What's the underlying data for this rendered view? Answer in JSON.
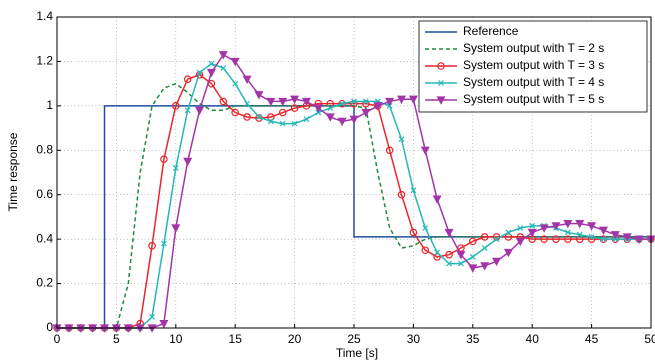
{
  "chart_data": {
    "type": "line",
    "xlabel": "Time [s]",
    "ylabel": "Time response",
    "xlim": [
      0,
      50
    ],
    "ylim": [
      0,
      1.4
    ],
    "xticks": [
      0,
      5,
      10,
      15,
      20,
      25,
      30,
      35,
      40,
      45,
      50
    ],
    "yticks": [
      0,
      0.2,
      0.4,
      0.6,
      0.8,
      1,
      1.2,
      1.4
    ],
    "grid": true,
    "legend": "upper right",
    "x": [
      0,
      1,
      2,
      3,
      4,
      5,
      6,
      7,
      8,
      9,
      10,
      11,
      12,
      13,
      14,
      15,
      16,
      17,
      18,
      19,
      20,
      21,
      22,
      23,
      24,
      25,
      26,
      27,
      28,
      29,
      30,
      31,
      32,
      33,
      34,
      35,
      36,
      37,
      38,
      39,
      40,
      41,
      42,
      43,
      44,
      45,
      46,
      47,
      48,
      49,
      50
    ],
    "series": [
      {
        "name": "Reference",
        "color": "#1f4e9c",
        "x": [
          0,
          4,
          4,
          25,
          25,
          50
        ],
        "values": [
          0,
          0,
          1,
          1,
          0.41,
          0.41
        ]
      },
      {
        "name": "System output with T = 2 s",
        "color": "#1e8a3c",
        "dashed": true,
        "values": [
          0,
          0,
          0,
          0,
          0,
          0,
          0.2,
          0.7,
          1.0,
          1.08,
          1.1,
          1.06,
          1.01,
          0.98,
          0.98,
          1.0,
          1.0,
          1.0,
          1.0,
          1.0,
          1.0,
          1.0,
          1.0,
          1.0,
          1.0,
          1.0,
          0.99,
          0.7,
          0.45,
          0.36,
          0.37,
          0.4,
          0.41,
          0.41,
          0.41,
          0.41,
          0.41,
          0.41,
          0.41,
          0.41,
          0.41,
          0.41,
          0.41,
          0.41,
          0.41,
          0.41,
          0.41,
          0.41,
          0.41,
          0.41,
          0.41
        ]
      },
      {
        "name": "System output with T = 3 s",
        "color": "#e8262b",
        "marker": "circle",
        "values": [
          0,
          0,
          0,
          0,
          0,
          0,
          0,
          0.02,
          0.37,
          0.76,
          1.0,
          1.12,
          1.14,
          1.1,
          1.02,
          0.97,
          0.95,
          0.945,
          0.95,
          0.97,
          0.99,
          1.0,
          1.01,
          1.01,
          1.01,
          1.01,
          1.01,
          1.0,
          0.8,
          0.6,
          0.43,
          0.35,
          0.32,
          0.33,
          0.36,
          0.39,
          0.41,
          0.41,
          0.41,
          0.41,
          0.4,
          0.4,
          0.4,
          0.4,
          0.4,
          0.4,
          0.4,
          0.4,
          0.4,
          0.4,
          0.4
        ]
      },
      {
        "name": "System output with T = 4 s",
        "color": "#25b8b8",
        "marker": "x",
        "values": [
          0,
          0,
          0,
          0,
          0,
          0,
          0,
          0,
          0.05,
          0.38,
          0.72,
          0.98,
          1.15,
          1.19,
          1.17,
          1.1,
          1.01,
          0.95,
          0.93,
          0.92,
          0.92,
          0.94,
          0.97,
          0.99,
          1.01,
          1.02,
          1.02,
          1.02,
          1.0,
          0.85,
          0.62,
          0.45,
          0.34,
          0.29,
          0.29,
          0.32,
          0.36,
          0.4,
          0.43,
          0.45,
          0.46,
          0.46,
          0.45,
          0.43,
          0.42,
          0.41,
          0.4,
          0.4,
          0.4,
          0.4,
          0.4
        ]
      },
      {
        "name": "System output with T = 5 s",
        "color": "#a235a8",
        "marker": "triangle",
        "values": [
          0,
          0,
          0,
          0,
          0,
          0,
          0,
          0,
          0,
          0.02,
          0.45,
          0.75,
          0.98,
          1.15,
          1.23,
          1.2,
          1.12,
          1.05,
          1.02,
          1.02,
          1.03,
          1.02,
          0.99,
          0.95,
          0.93,
          0.94,
          0.97,
          1.0,
          1.02,
          1.03,
          1.03,
          0.8,
          0.58,
          0.43,
          0.33,
          0.27,
          0.28,
          0.3,
          0.34,
          0.39,
          0.43,
          0.45,
          0.46,
          0.47,
          0.47,
          0.46,
          0.44,
          0.42,
          0.41,
          0.4,
          0.4
        ]
      }
    ]
  }
}
